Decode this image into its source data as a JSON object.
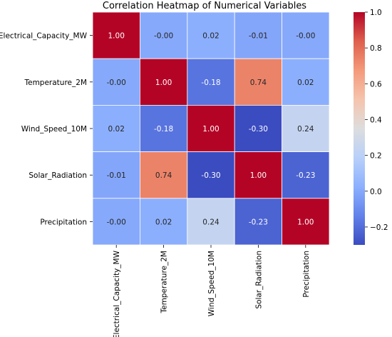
{
  "chart_data": {
    "type": "heatmap",
    "title": "Correlation Heatmap of Numerical Variables",
    "row_labels": [
      "Electrical_Capacity_MW",
      "Temperature_2M",
      "Wind_Speed_10M",
      "Solar_Radiation",
      "Precipitation"
    ],
    "col_labels": [
      "Electrical_Capacity_MW",
      "Temperature_2M",
      "Wind_Speed_10M",
      "Solar_Radiation",
      "Precipitation"
    ],
    "values": [
      [
        1.0,
        -0.0,
        0.02,
        -0.01,
        -0.0
      ],
      [
        -0.0,
        1.0,
        -0.18,
        0.74,
        0.02
      ],
      [
        0.02,
        -0.18,
        1.0,
        -0.3,
        0.24
      ],
      [
        -0.01,
        0.74,
        -0.3,
        1.0,
        -0.23
      ],
      [
        -0.0,
        0.02,
        0.24,
        -0.23,
        1.0
      ]
    ],
    "cell_labels": [
      [
        "1.00",
        "-0.00",
        "0.02",
        "-0.01",
        "-0.00"
      ],
      [
        "-0.00",
        "1.00",
        "-0.18",
        "0.74",
        "0.02"
      ],
      [
        "0.02",
        "-0.18",
        "1.00",
        "-0.30",
        "0.24"
      ],
      [
        "-0.01",
        "0.74",
        "-0.30",
        "1.00",
        "-0.23"
      ],
      [
        "-0.00",
        "0.02",
        "0.24",
        "-0.23",
        "1.00"
      ]
    ],
    "colormap": "coolwarm",
    "colorbar": {
      "range": [
        -0.3,
        1.0
      ],
      "ticks": [
        -0.2,
        0.0,
        0.2,
        0.4,
        0.6,
        0.8,
        1.0
      ],
      "tick_labels": [
        "−0.2",
        "0.0",
        "0.2",
        "0.4",
        "0.6",
        "0.8",
        "1.0"
      ]
    },
    "annotated": true,
    "grid": false,
    "legend": "colorbar-right"
  }
}
